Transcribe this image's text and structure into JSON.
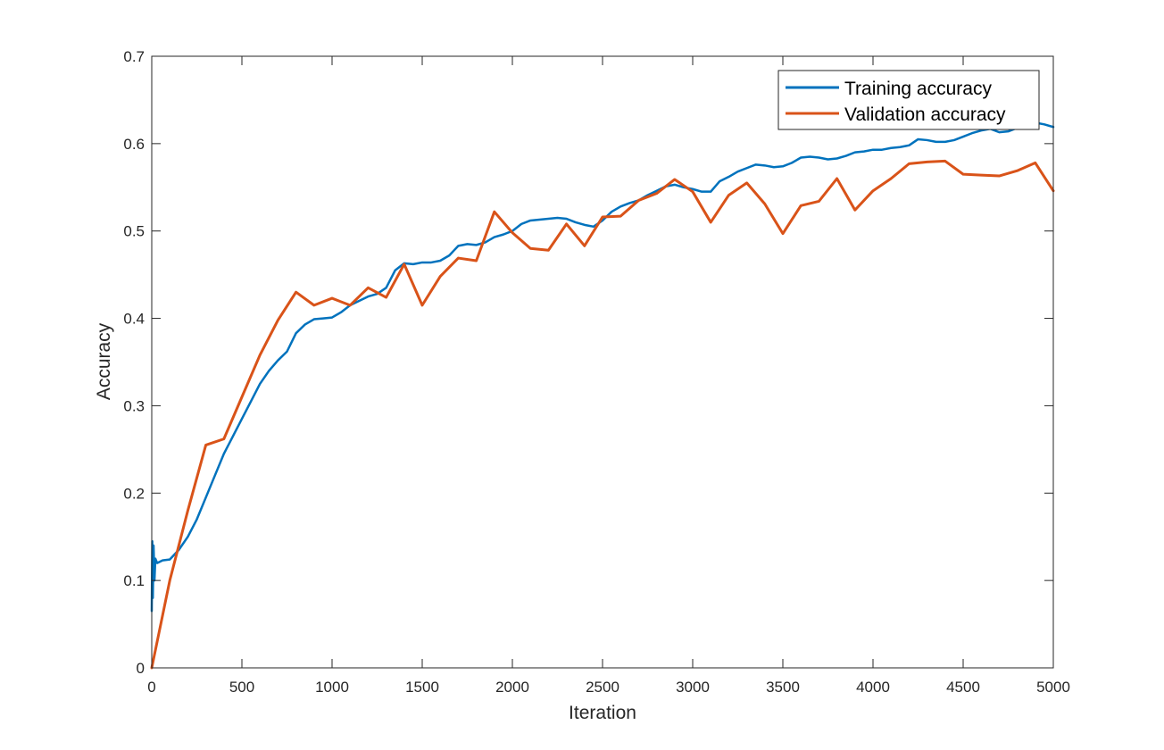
{
  "chart_data": {
    "type": "line",
    "title": "",
    "xlabel": "Iteration",
    "ylabel": "Accuracy",
    "xlim": [
      0,
      5000
    ],
    "ylim": [
      0,
      0.7
    ],
    "x_ticks": [
      0,
      500,
      1000,
      1500,
      2000,
      2500,
      3000,
      3500,
      4000,
      4500,
      5000
    ],
    "y_ticks": [
      0,
      0.1,
      0.2,
      0.3,
      0.4,
      0.5,
      0.6,
      0.7
    ],
    "x_tick_labels": [
      "0",
      "500",
      "1000",
      "1500",
      "2000",
      "2500",
      "3000",
      "3500",
      "4000",
      "4500",
      "5000"
    ],
    "y_tick_labels": [
      "0",
      "0.1",
      "0.2",
      "0.3",
      "0.4",
      "0.5",
      "0.6",
      "0.7"
    ],
    "grid": false,
    "legend_position": "top-right",
    "series": [
      {
        "name": "Training accuracy",
        "color": "#0072BD",
        "points": [
          [
            0,
            0.065
          ],
          [
            3,
            0.145
          ],
          [
            6,
            0.08
          ],
          [
            10,
            0.14
          ],
          [
            15,
            0.1
          ],
          [
            20,
            0.125
          ],
          [
            30,
            0.12
          ],
          [
            60,
            0.123
          ],
          [
            100,
            0.124
          ],
          [
            150,
            0.135
          ],
          [
            200,
            0.15
          ],
          [
            250,
            0.17
          ],
          [
            300,
            0.195
          ],
          [
            350,
            0.22
          ],
          [
            400,
            0.245
          ],
          [
            450,
            0.265
          ],
          [
            500,
            0.285
          ],
          [
            550,
            0.305
          ],
          [
            600,
            0.325
          ],
          [
            650,
            0.34
          ],
          [
            700,
            0.352
          ],
          [
            750,
            0.362
          ],
          [
            800,
            0.383
          ],
          [
            850,
            0.393
          ],
          [
            900,
            0.399
          ],
          [
            950,
            0.4
          ],
          [
            1000,
            0.401
          ],
          [
            1050,
            0.407
          ],
          [
            1100,
            0.415
          ],
          [
            1150,
            0.42
          ],
          [
            1200,
            0.425
          ],
          [
            1250,
            0.428
          ],
          [
            1300,
            0.435
          ],
          [
            1350,
            0.455
          ],
          [
            1400,
            0.463
          ],
          [
            1450,
            0.462
          ],
          [
            1500,
            0.464
          ],
          [
            1550,
            0.464
          ],
          [
            1600,
            0.466
          ],
          [
            1650,
            0.472
          ],
          [
            1700,
            0.483
          ],
          [
            1750,
            0.485
          ],
          [
            1800,
            0.484
          ],
          [
            1850,
            0.487
          ],
          [
            1900,
            0.493
          ],
          [
            1950,
            0.496
          ],
          [
            2000,
            0.5
          ],
          [
            2050,
            0.508
          ],
          [
            2100,
            0.512
          ],
          [
            2150,
            0.513
          ],
          [
            2200,
            0.514
          ],
          [
            2250,
            0.515
          ],
          [
            2300,
            0.514
          ],
          [
            2350,
            0.51
          ],
          [
            2400,
            0.507
          ],
          [
            2450,
            0.505
          ],
          [
            2500,
            0.512
          ],
          [
            2550,
            0.522
          ],
          [
            2600,
            0.528
          ],
          [
            2650,
            0.532
          ],
          [
            2700,
            0.535
          ],
          [
            2750,
            0.541
          ],
          [
            2800,
            0.546
          ],
          [
            2850,
            0.551
          ],
          [
            2900,
            0.553
          ],
          [
            2950,
            0.55
          ],
          [
            3000,
            0.548
          ],
          [
            3050,
            0.545
          ],
          [
            3100,
            0.545
          ],
          [
            3150,
            0.557
          ],
          [
            3200,
            0.562
          ],
          [
            3250,
            0.568
          ],
          [
            3300,
            0.572
          ],
          [
            3350,
            0.576
          ],
          [
            3400,
            0.575
          ],
          [
            3450,
            0.573
          ],
          [
            3500,
            0.574
          ],
          [
            3550,
            0.578
          ],
          [
            3600,
            0.584
          ],
          [
            3650,
            0.585
          ],
          [
            3700,
            0.584
          ],
          [
            3750,
            0.582
          ],
          [
            3800,
            0.583
          ],
          [
            3850,
            0.586
          ],
          [
            3900,
            0.59
          ],
          [
            3950,
            0.591
          ],
          [
            4000,
            0.593
          ],
          [
            4050,
            0.593
          ],
          [
            4100,
            0.595
          ],
          [
            4150,
            0.596
          ],
          [
            4200,
            0.598
          ],
          [
            4250,
            0.605
          ],
          [
            4300,
            0.604
          ],
          [
            4350,
            0.602
          ],
          [
            4400,
            0.602
          ],
          [
            4450,
            0.604
          ],
          [
            4500,
            0.608
          ],
          [
            4550,
            0.612
          ],
          [
            4600,
            0.615
          ],
          [
            4650,
            0.617
          ],
          [
            4700,
            0.613
          ],
          [
            4750,
            0.614
          ],
          [
            4800,
            0.618
          ],
          [
            4850,
            0.622
          ],
          [
            4900,
            0.624
          ],
          [
            4950,
            0.622
          ],
          [
            5000,
            0.619
          ]
        ]
      },
      {
        "name": "Validation accuracy",
        "color": "#D95319",
        "points": [
          [
            0,
            0.0
          ],
          [
            100,
            0.1
          ],
          [
            200,
            0.18
          ],
          [
            300,
            0.255
          ],
          [
            400,
            0.262
          ],
          [
            500,
            0.31
          ],
          [
            600,
            0.358
          ],
          [
            700,
            0.398
          ],
          [
            800,
            0.43
          ],
          [
            900,
            0.415
          ],
          [
            1000,
            0.423
          ],
          [
            1100,
            0.415
          ],
          [
            1200,
            0.435
          ],
          [
            1300,
            0.424
          ],
          [
            1400,
            0.462
          ],
          [
            1500,
            0.415
          ],
          [
            1600,
            0.448
          ],
          [
            1700,
            0.469
          ],
          [
            1800,
            0.466
          ],
          [
            1900,
            0.522
          ],
          [
            2000,
            0.498
          ],
          [
            2100,
            0.48
          ],
          [
            2200,
            0.478
          ],
          [
            2300,
            0.508
          ],
          [
            2400,
            0.483
          ],
          [
            2500,
            0.516
          ],
          [
            2600,
            0.517
          ],
          [
            2700,
            0.535
          ],
          [
            2800,
            0.543
          ],
          [
            2900,
            0.559
          ],
          [
            3000,
            0.545
          ],
          [
            3100,
            0.51
          ],
          [
            3200,
            0.541
          ],
          [
            3300,
            0.555
          ],
          [
            3400,
            0.531
          ],
          [
            3500,
            0.497
          ],
          [
            3600,
            0.529
          ],
          [
            3700,
            0.534
          ],
          [
            3800,
            0.56
          ],
          [
            3900,
            0.524
          ],
          [
            4000,
            0.546
          ],
          [
            4100,
            0.56
          ],
          [
            4200,
            0.577
          ],
          [
            4300,
            0.579
          ],
          [
            4400,
            0.58
          ],
          [
            4500,
            0.565
          ],
          [
            4600,
            0.564
          ],
          [
            4700,
            0.563
          ],
          [
            4800,
            0.569
          ],
          [
            4900,
            0.578
          ],
          [
            5000,
            0.546
          ]
        ]
      }
    ]
  }
}
